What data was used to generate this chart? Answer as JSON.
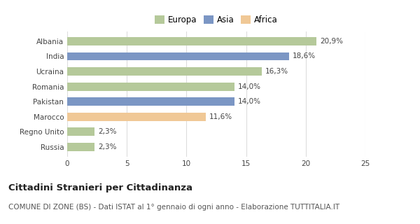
{
  "categories": [
    "Albania",
    "India",
    "Ucraina",
    "Romania",
    "Pakistan",
    "Marocco",
    "Regno Unito",
    "Russia"
  ],
  "values": [
    20.9,
    18.6,
    16.3,
    14.0,
    14.0,
    11.6,
    2.3,
    2.3
  ],
  "colors": [
    "#b5c99a",
    "#7b96c4",
    "#b5c99a",
    "#b5c99a",
    "#7b96c4",
    "#f0c896",
    "#b5c99a",
    "#b5c99a"
  ],
  "labels": [
    "20,9%",
    "18,6%",
    "16,3%",
    "14,0%",
    "14,0%",
    "11,6%",
    "2,3%",
    "2,3%"
  ],
  "xlim": [
    0,
    25
  ],
  "xticks": [
    0,
    5,
    10,
    15,
    20,
    25
  ],
  "legend_items": [
    {
      "label": "Europa",
      "color": "#b5c99a"
    },
    {
      "label": "Asia",
      "color": "#7b96c4"
    },
    {
      "label": "Africa",
      "color": "#f0c896"
    }
  ],
  "title": "Cittadini Stranieri per Cittadinanza",
  "subtitle": "COMUNE DI ZONE (BS) - Dati ISTAT al 1° gennaio di ogni anno - Elaborazione TUTTITALIA.IT",
  "bg_color": "#ffffff",
  "grid_color": "#dddddd",
  "title_fontsize": 9.5,
  "subtitle_fontsize": 7.5,
  "label_fontsize": 7.5,
  "tick_fontsize": 7.5,
  "legend_fontsize": 8.5
}
